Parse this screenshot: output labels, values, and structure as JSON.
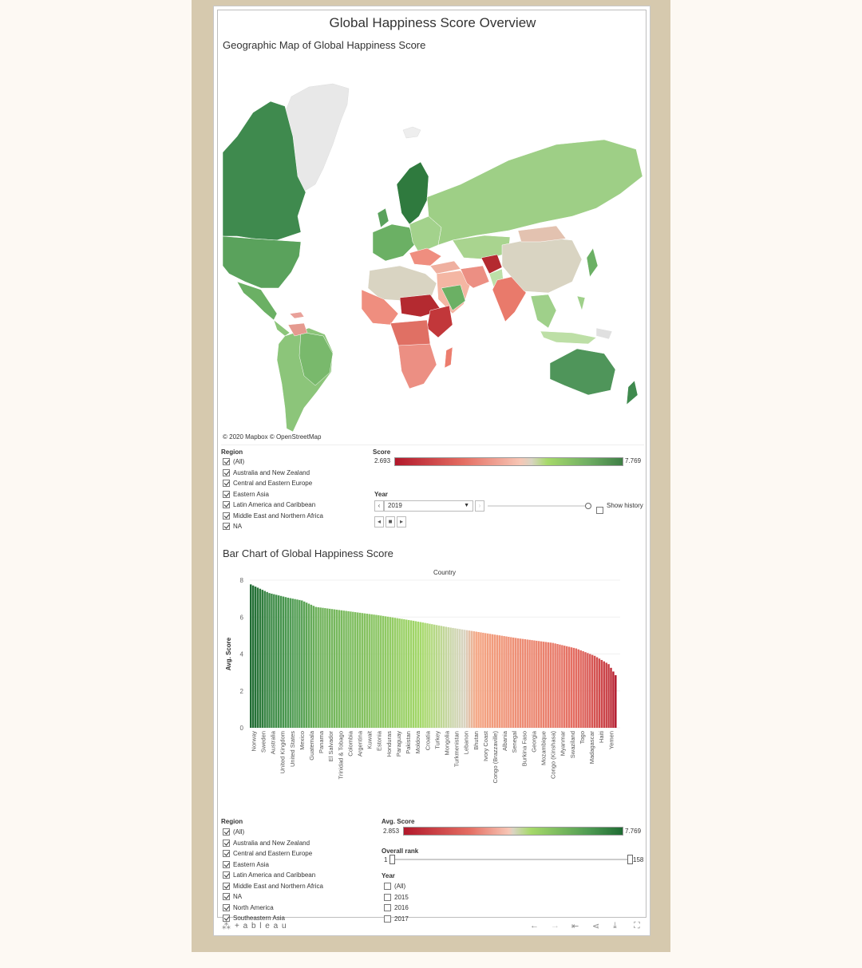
{
  "dashboard": {
    "title": "Global Happiness Score Overview",
    "map_title": "Geographic Map of Global Happiness Score",
    "attribution": "© 2020 Mapbox  © OpenStreetMap",
    "bar_title": "Bar Chart of Global Happiness Score"
  },
  "map_filters": {
    "region_label": "Region",
    "regions": [
      {
        "label": "(All)",
        "checked": true
      },
      {
        "label": "Australia and New Zealand",
        "checked": true
      },
      {
        "label": "Central and Eastern Europe",
        "checked": true
      },
      {
        "label": "Eastern Asia",
        "checked": true
      },
      {
        "label": "Latin America and Caribbean",
        "checked": true
      },
      {
        "label": "Middle East and Northern Africa",
        "checked": true
      },
      {
        "label": "NA",
        "checked": true
      }
    ],
    "score_label": "Score",
    "score_min": "2.693",
    "score_max": "7.769",
    "year_label": "Year",
    "year_value": "2019",
    "show_history": "Show history"
  },
  "bar_filters": {
    "region_label": "Region",
    "regions": [
      {
        "label": "(All)",
        "checked": true
      },
      {
        "label": "Australia and New Zealand",
        "checked": true
      },
      {
        "label": "Central and Eastern Europe",
        "checked": true
      },
      {
        "label": "Eastern Asia",
        "checked": true
      },
      {
        "label": "Latin America and Caribbean",
        "checked": true
      },
      {
        "label": "Middle East and Northern Africa",
        "checked": true
      },
      {
        "label": "NA",
        "checked": true
      },
      {
        "label": "North America",
        "checked": true
      },
      {
        "label": "Southeastern Asia",
        "checked": true
      }
    ],
    "avg_score_label": "Avg. Score",
    "avg_min": "2.853",
    "avg_max": "7.769",
    "rank_label": "Overall rank",
    "rank_min": "1",
    "rank_max": "158",
    "year_label": "Year",
    "years": [
      {
        "label": "(All)",
        "checked": false
      },
      {
        "label": "2015",
        "checked": false
      },
      {
        "label": "2016",
        "checked": false
      },
      {
        "label": "2017",
        "checked": false
      }
    ]
  },
  "toolbar": {
    "brand": "+ a b l e a u",
    "icons": [
      "undo-icon",
      "redo-icon",
      "revert-icon",
      "share-icon",
      "download-icon",
      "fullscreen-icon"
    ]
  },
  "colors": {
    "low": "#b2182b",
    "mid_low": "#f4a582",
    "mid": "#d9d4c2",
    "mid_high": "#a6d96a",
    "high": "#1f6b33"
  },
  "chart_data": {
    "type": "bar",
    "title": "Bar Chart of Global Happiness Score",
    "xlabel": "Country",
    "ylabel": "Avg. Score",
    "ylim": [
      0,
      8
    ],
    "yticks": [
      0,
      2,
      4,
      6,
      8
    ],
    "n_bars": 158,
    "score_range": [
      2.853,
      7.769
    ],
    "x_tick_labels": [
      "Norway",
      "Sweden",
      "Australia",
      "United Kingdom",
      "United States",
      "Mexico",
      "Guatemala",
      "Panama",
      "El Salvador",
      "Trinidad & Tobago",
      "Colombia",
      "Argentina",
      "Kuwait",
      "Estonia",
      "Honduras",
      "Paraguay",
      "Pakistan",
      "Moldova",
      "Croatia",
      "Turkey",
      "Mongolia",
      "Turkmenistan",
      "Lebanon",
      "Bhutan",
      "Ivory Coast",
      "Congo (Brazzaville)",
      "Albania",
      "Senegal",
      "Burkina Faso",
      "Georgia",
      "Mozambique",
      "Congo (Kinshasa)",
      "Myanmar",
      "Swaziland",
      "Togo",
      "Madagascar",
      "Haiti",
      "Yemen"
    ],
    "profile": [
      [
        0,
        7.77
      ],
      [
        8,
        7.3
      ],
      [
        16,
        7.05
      ],
      [
        22,
        6.9
      ],
      [
        28,
        6.55
      ],
      [
        40,
        6.35
      ],
      [
        55,
        6.1
      ],
      [
        70,
        5.8
      ],
      [
        85,
        5.45
      ],
      [
        100,
        5.15
      ],
      [
        115,
        4.85
      ],
      [
        130,
        4.6
      ],
      [
        140,
        4.3
      ],
      [
        148,
        3.9
      ],
      [
        154,
        3.45
      ],
      [
        157,
        2.85
      ]
    ]
  }
}
